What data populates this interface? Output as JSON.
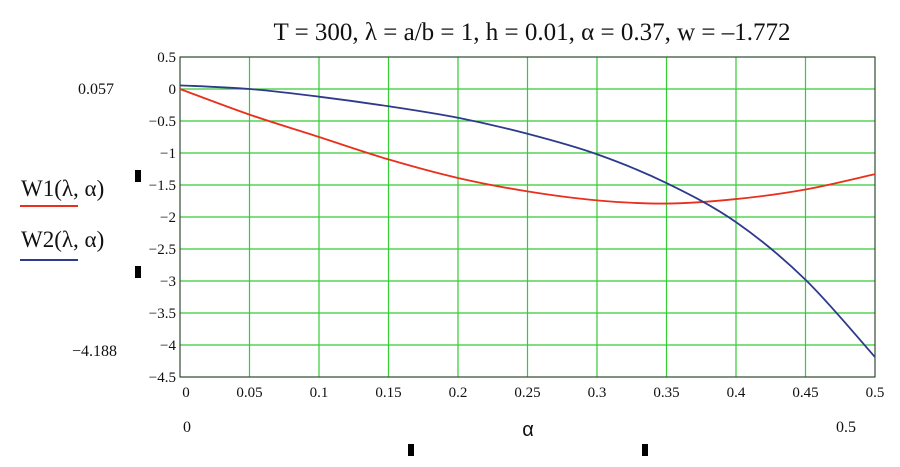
{
  "chart_data": {
    "type": "line",
    "title": "T = 300, λ = a/b = 1, h = 0.01, α = 0.37, w = –1.772",
    "xlabel": "α",
    "xlim": [
      0,
      0.5
    ],
    "ylim": [
      -4.5,
      0.5
    ],
    "x_ticks": [
      0,
      0.05,
      0.1,
      0.15,
      0.2,
      0.25,
      0.3,
      0.35,
      0.4,
      0.45,
      0.5
    ],
    "x_tick_labels": [
      "0",
      "0.05",
      "0.1",
      "0.15",
      "0.2",
      "0.25",
      "0.3",
      "0.35",
      "0.4",
      "0.45",
      "0.5"
    ],
    "y_ticks": [
      0.5,
      0,
      -0.5,
      -1,
      -1.5,
      -2,
      -2.5,
      -3,
      -3.5,
      -4,
      -4.5
    ],
    "y_tick_labels": [
      "0.5",
      "0",
      "−0.5",
      "−1",
      "−1.5",
      "−2",
      "−2.5",
      "−3",
      "−3.5",
      "−4",
      "−4.5"
    ],
    "y_range_labels": {
      "max": "0.057",
      "min": "−4.188"
    },
    "x_range_labels": {
      "min": "0",
      "max": "0.5"
    },
    "grid": true,
    "grid_color": "#33cc33",
    "series": [
      {
        "name": "W1(λ, α)",
        "color": "#e8301c",
        "x": [
          0,
          0.05,
          0.1,
          0.15,
          0.2,
          0.25,
          0.3,
          0.35,
          0.4,
          0.45,
          0.5
        ],
        "y": [
          0,
          -0.4,
          -0.75,
          -1.1,
          -1.39,
          -1.6,
          -1.74,
          -1.79,
          -1.72,
          -1.57,
          -1.33
        ]
      },
      {
        "name": "W2(λ, α)",
        "color": "#2e3a8c",
        "x": [
          0,
          0.05,
          0.1,
          0.15,
          0.2,
          0.25,
          0.3,
          0.35,
          0.4,
          0.45,
          0.5
        ],
        "y": [
          0.057,
          0,
          -0.12,
          -0.27,
          -0.45,
          -0.7,
          -1.02,
          -1.47,
          -2.08,
          -2.98,
          -4.188
        ]
      }
    ]
  }
}
